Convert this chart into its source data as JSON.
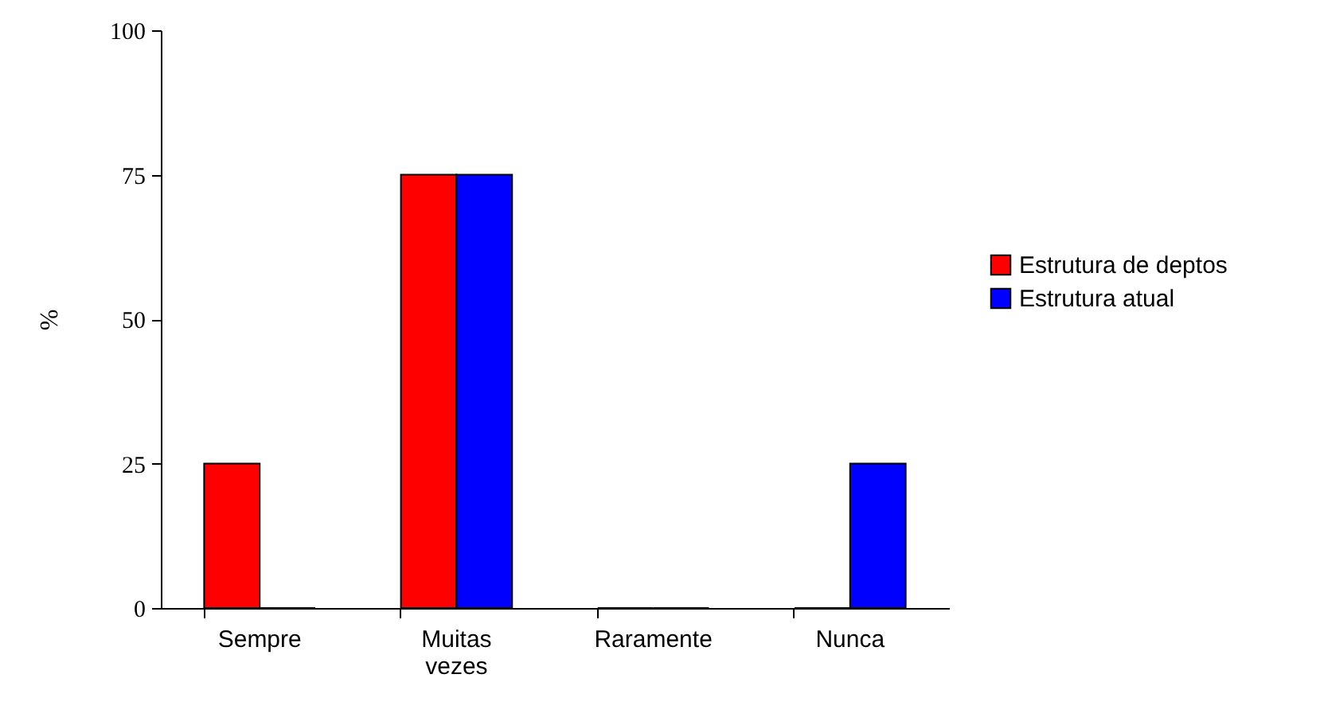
{
  "chart_data": {
    "type": "bar",
    "ylabel": "%",
    "categories": [
      "Sempre",
      "Muitas vezes",
      "Raramente",
      "Nunca"
    ],
    "series": [
      {
        "name": "Estrutura de deptos",
        "color": "#ff0000",
        "values": [
          25,
          75,
          0,
          0
        ]
      },
      {
        "name": "Estrutura atual",
        "color": "#0000ff",
        "values": [
          0,
          75,
          0,
          25
        ]
      }
    ],
    "ylim": [
      0,
      100
    ],
    "yticks": [
      0,
      25,
      50,
      75,
      100
    ],
    "grid": false,
    "legend": "right"
  }
}
